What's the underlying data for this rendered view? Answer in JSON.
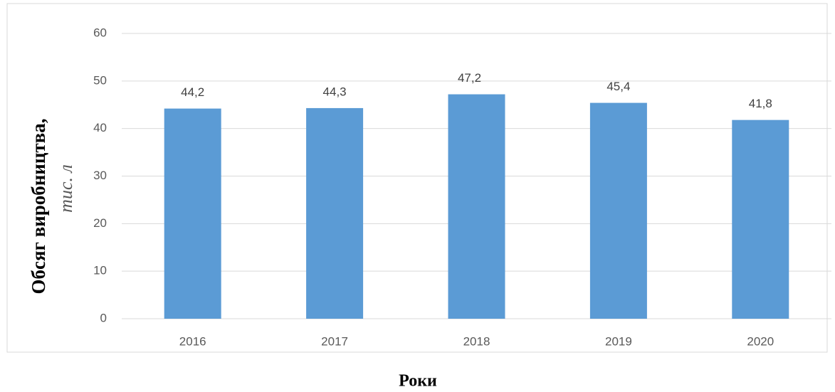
{
  "chart_data": {
    "type": "bar",
    "y_label": "Обсяг виробництва,",
    "y_unit": "тис. л",
    "x_label": "Роки",
    "categories": [
      "2016",
      "2017",
      "2018",
      "2019",
      "2020"
    ],
    "values": [
      44.2,
      44.3,
      47.2,
      45.4,
      41.8
    ],
    "value_labels": [
      "44,2",
      "44,3",
      "47,2",
      "45,4",
      "41,8"
    ],
    "color": "#5b9bd5",
    "ylim": [
      0,
      60
    ],
    "yticks": [
      0,
      10,
      20,
      30,
      40,
      50,
      60
    ],
    "grid": true
  }
}
